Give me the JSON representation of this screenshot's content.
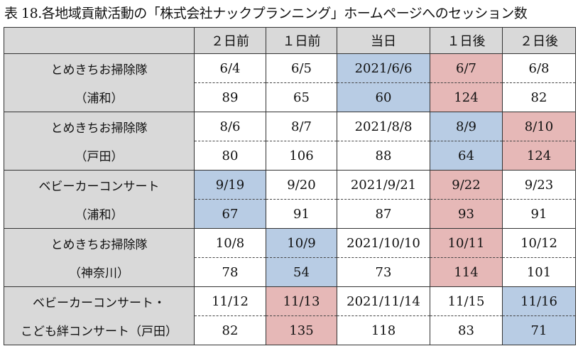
{
  "title": "表 18.各地域貢献活動の「株式会社ナックプランニング」ホームページへのセッション数",
  "colors": {
    "blue": "#b8cce4",
    "pink": "#e6b8b7",
    "header": "#d9d9d9"
  },
  "columns": [
    "",
    "２日前",
    "１日前",
    "当日",
    "１日後",
    "２日後"
  ],
  "groups": [
    {
      "label1": "とめきちお掃除隊",
      "label2": "（浦和）",
      "dates": [
        "6/4",
        "6/5",
        "2021/6/6",
        "6/7",
        "6/8"
      ],
      "values": [
        "89",
        "65",
        "60",
        "124",
        "82"
      ],
      "highlight": [
        null,
        null,
        "blue",
        "pink",
        null
      ]
    },
    {
      "label1": "とめきちお掃除隊",
      "label2": "（戸田）",
      "dates": [
        "8/6",
        "8/7",
        "2021/8/8",
        "8/9",
        "8/10"
      ],
      "values": [
        "80",
        "106",
        "88",
        "64",
        "124"
      ],
      "highlight": [
        null,
        null,
        null,
        "blue",
        "pink"
      ]
    },
    {
      "label1": "ベビーカーコンサート",
      "label2": "（浦和）",
      "dates": [
        "9/19",
        "9/20",
        "2021/9/21",
        "9/22",
        "9/23"
      ],
      "values": [
        "67",
        "91",
        "87",
        "93",
        "91"
      ],
      "highlight": [
        "blue",
        null,
        null,
        "pink",
        null
      ]
    },
    {
      "label1": "とめきちお掃除隊",
      "label2": "（神奈川）",
      "dates": [
        "10/8",
        "10/9",
        "2021/10/10",
        "10/11",
        "10/12"
      ],
      "values": [
        "78",
        "54",
        "73",
        "114",
        "101"
      ],
      "highlight": [
        null,
        "blue",
        null,
        "pink",
        null
      ]
    },
    {
      "label1": "ベビーカーコンサート・",
      "label2": "こども絆コンサート（戸田）",
      "dates": [
        "11/12",
        "11/13",
        "2021/11/14",
        "11/15",
        "11/16"
      ],
      "values": [
        "82",
        "135",
        "118",
        "83",
        "71"
      ],
      "highlight": [
        null,
        "pink",
        null,
        null,
        "blue"
      ]
    }
  ]
}
